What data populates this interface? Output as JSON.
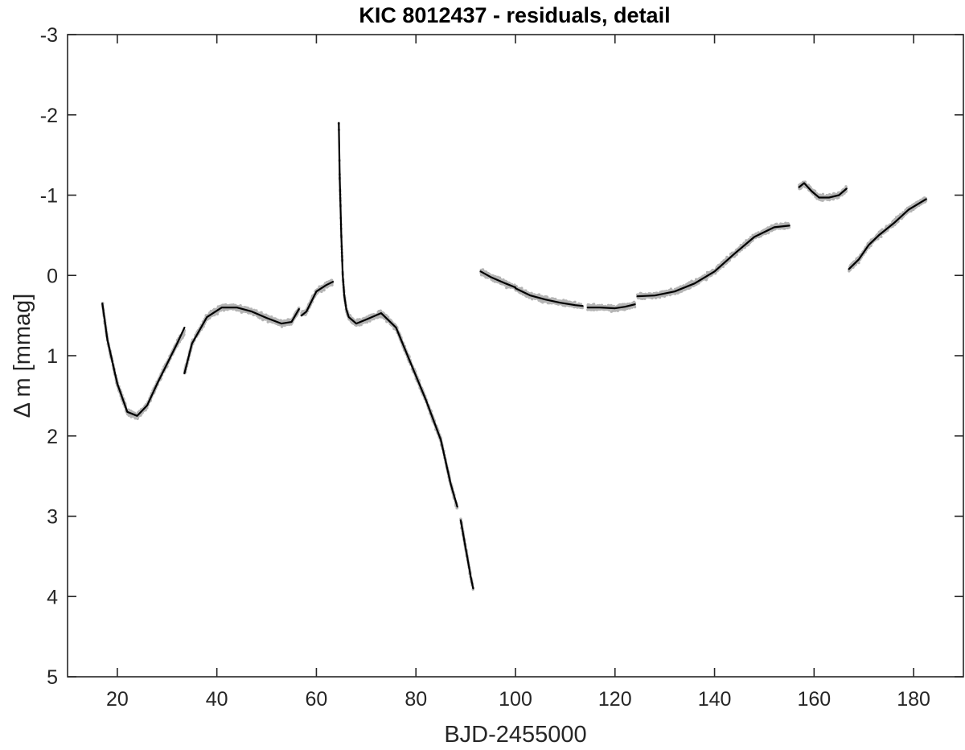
{
  "chart_data": {
    "type": "scatter",
    "title": "KIC 8012437 - residuals, detail",
    "xlabel": "BJD-2455000",
    "ylabel": "Δ m  [mmag]",
    "xlim": [
      10,
      190
    ],
    "ylim": [
      5,
      -3
    ],
    "y_inverted": true,
    "grid": false,
    "legend": "none",
    "x_ticks": [
      20,
      40,
      60,
      80,
      100,
      120,
      140,
      160,
      180
    ],
    "y_ticks": [
      -3,
      -2,
      -1,
      0,
      1,
      2,
      3,
      4,
      5
    ],
    "colors": {
      "data": "#b4b4b4",
      "fit": "#000000",
      "axes": "#262626"
    },
    "series": [
      {
        "kind": "scatter",
        "segments": [
          {
            "x": [
              17,
              18,
              20,
              22,
              24,
              26,
              28,
              30,
              32,
              33.5
            ],
            "y": [
              0.35,
              0.8,
              1.35,
              1.7,
              1.75,
              1.62,
              1.35,
              1.1,
              0.85,
              0.7
            ]
          },
          {
            "x": [
              33.5,
              35,
              38,
              41,
              44,
              47,
              50,
              53,
              55,
              56.5
            ],
            "y": [
              1.22,
              0.85,
              0.52,
              0.4,
              0.4,
              0.45,
              0.53,
              0.6,
              0.58,
              0.42
            ]
          },
          {
            "x": [
              57,
              58,
              60,
              62,
              63.3
            ],
            "y": [
              0.48,
              0.45,
              0.2,
              0.12,
              0.08
            ]
          },
          {
            "x": [
              64.5,
              64.7,
              65,
              65.3,
              65.6,
              66,
              66.5,
              68,
              70,
              73,
              76,
              79,
              82,
              85,
              87,
              88.3
            ],
            "y": [
              -1.9,
              -1.2,
              -0.5,
              0.0,
              0.25,
              0.42,
              0.52,
              0.6,
              0.55,
              0.47,
              0.65,
              1.1,
              1.55,
              2.05,
              2.6,
              2.9
            ]
          },
          {
            "x": [
              89,
              90,
              91,
              91.5
            ],
            "y": [
              3.05,
              3.4,
              3.75,
              3.9
            ]
          },
          {
            "x": [
              93,
              95,
              98,
              100
            ],
            "y": [
              -0.05,
              0.02,
              0.1,
              0.15
            ]
          },
          {
            "x": [
              100,
              103,
              106,
              109,
              112,
              113.5
            ],
            "y": [
              0.16,
              0.25,
              0.3,
              0.34,
              0.37,
              0.38
            ]
          },
          {
            "x": [
              114.5,
              117,
              120,
              122,
              124
            ],
            "y": [
              0.4,
              0.4,
              0.41,
              0.39,
              0.36
            ]
          },
          {
            "x": [
              124.5,
              128,
              132,
              136,
              140,
              144,
              148,
              152,
              155
            ],
            "y": [
              0.26,
              0.25,
              0.2,
              0.1,
              -0.05,
              -0.27,
              -0.48,
              -0.6,
              -0.62
            ]
          },
          {
            "x": [
              157,
              158,
              159.5,
              161,
              163,
              165,
              166.5
            ],
            "y": [
              -1.1,
              -1.15,
              -1.05,
              -0.97,
              -0.97,
              -1.0,
              -1.08
            ]
          },
          {
            "x": [
              167,
              169,
              171,
              173,
              176,
              179,
              182.5
            ],
            "y": [
              -0.08,
              -0.2,
              -0.38,
              -0.5,
              -0.65,
              -0.82,
              -0.95
            ]
          }
        ]
      },
      {
        "kind": "line",
        "segments": [
          {
            "x": [
              17,
              18,
              20,
              22,
              24,
              26,
              28,
              30,
              32,
              33.5
            ],
            "y": [
              0.35,
              0.8,
              1.35,
              1.7,
              1.75,
              1.62,
              1.35,
              1.1,
              0.85,
              0.65
            ]
          },
          {
            "x": [
              33.5,
              35,
              38,
              41,
              44,
              47,
              50,
              53,
              55,
              56.5
            ],
            "y": [
              1.22,
              0.85,
              0.52,
              0.4,
              0.4,
              0.45,
              0.53,
              0.6,
              0.58,
              0.42
            ]
          },
          {
            "x": [
              57,
              58,
              60,
              62,
              63.3
            ],
            "y": [
              0.5,
              0.45,
              0.2,
              0.12,
              0.08
            ]
          },
          {
            "x": [
              64.5,
              64.7,
              65,
              65.3,
              65.6,
              66,
              66.5,
              68,
              70,
              73,
              76,
              79,
              82,
              85,
              87,
              88.3
            ],
            "y": [
              -1.9,
              -1.2,
              -0.5,
              0.0,
              0.25,
              0.42,
              0.52,
              0.6,
              0.55,
              0.47,
              0.65,
              1.1,
              1.55,
              2.05,
              2.6,
              2.88
            ]
          },
          {
            "x": [
              89,
              90,
              91,
              91.5
            ],
            "y": [
              3.05,
              3.4,
              3.75,
              3.9
            ]
          },
          {
            "x": [
              93,
              95,
              98,
              100
            ],
            "y": [
              -0.05,
              0.02,
              0.1,
              0.15
            ]
          },
          {
            "x": [
              100,
              103,
              106,
              109,
              112,
              113.5
            ],
            "y": [
              0.16,
              0.25,
              0.3,
              0.34,
              0.37,
              0.38
            ]
          },
          {
            "x": [
              114.5,
              117,
              120,
              122,
              124
            ],
            "y": [
              0.4,
              0.4,
              0.41,
              0.39,
              0.36
            ]
          },
          {
            "x": [
              124.5,
              128,
              132,
              136,
              140,
              144,
              148,
              152,
              155
            ],
            "y": [
              0.26,
              0.25,
              0.2,
              0.1,
              -0.05,
              -0.27,
              -0.48,
              -0.6,
              -0.62
            ]
          },
          {
            "x": [
              157,
              158,
              159.5,
              161,
              163,
              165,
              166.5
            ],
            "y": [
              -1.1,
              -1.15,
              -1.05,
              -0.97,
              -0.97,
              -1.0,
              -1.08
            ]
          },
          {
            "x": [
              167,
              169,
              171,
              173,
              176,
              179,
              182.5
            ],
            "y": [
              -0.08,
              -0.2,
              -0.38,
              -0.5,
              -0.65,
              -0.82,
              -0.95
            ]
          }
        ]
      }
    ]
  }
}
